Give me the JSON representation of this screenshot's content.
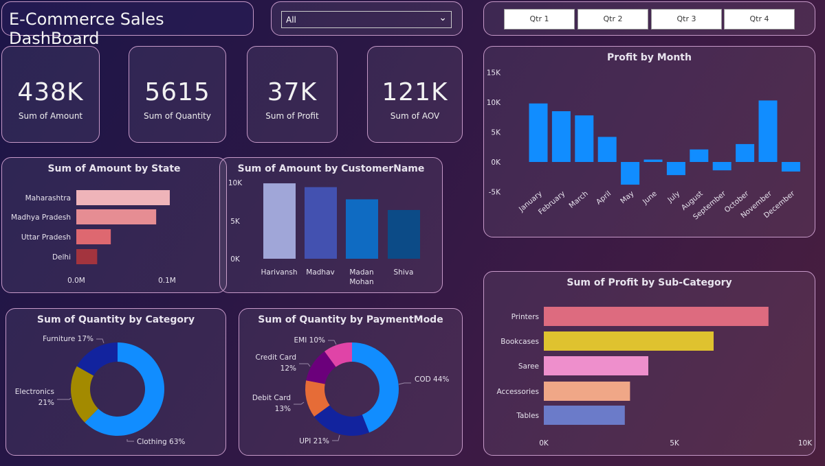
{
  "header": {
    "title": "E-Commerce Sales DashBoard"
  },
  "slicer": {
    "value": "All"
  },
  "quarters": [
    "Qtr 1",
    "Qtr 2",
    "Qtr 3",
    "Qtr 4"
  ],
  "kpis": [
    {
      "value": "438K",
      "label": "Sum of Amount"
    },
    {
      "value": "5615",
      "label": "Sum of Quantity"
    },
    {
      "value": "37K",
      "label": "Sum of Profit"
    },
    {
      "value": "121K",
      "label": "Sum of AOV"
    }
  ],
  "chart_data": [
    {
      "id": "state",
      "type": "bar",
      "orientation": "horizontal",
      "title": "Sum of Amount by State",
      "categories": [
        "Maharashtra",
        "Madhya Pradesh",
        "Uttar Pradesh",
        "Delhi"
      ],
      "values": [
        0.103,
        0.088,
        0.038,
        0.023
      ],
      "unit": "M",
      "xticks": [
        "0.0M",
        "0.1M"
      ],
      "xlim": [
        0,
        0.1
      ],
      "colors": [
        "#efb4b9",
        "#e68d93",
        "#de6870",
        "#a3343e"
      ]
    },
    {
      "id": "customer",
      "type": "bar",
      "title": "Sum of Amount by CustomerName",
      "categories": [
        "Harivansh",
        "Madhav",
        "Madan Mohan",
        "Shiva"
      ],
      "values": [
        9.9,
        9.4,
        7.8,
        6.4
      ],
      "unit": "K",
      "yticks": [
        "10K",
        "5K",
        "0K"
      ],
      "ylim": [
        0,
        10
      ],
      "colors": [
        "#a0a6d8",
        "#4351b0",
        "#0f6bc2",
        "#0c4b87"
      ]
    },
    {
      "id": "month",
      "type": "bar",
      "title": "Profit by Month",
      "categories": [
        "January",
        "February",
        "March",
        "April",
        "May",
        "June",
        "July",
        "August",
        "September",
        "October",
        "November",
        "December"
      ],
      "values": [
        9.8,
        8.5,
        7.8,
        4.2,
        -3.8,
        0.4,
        -2.2,
        2.1,
        -1.4,
        3.0,
        10.3,
        -1.6
      ],
      "unit": "K",
      "yticks": [
        "15K",
        "10K",
        "5K",
        "0K",
        "-5K"
      ],
      "ylim": [
        -5,
        15
      ],
      "color": "#118dff"
    },
    {
      "id": "category",
      "type": "pie",
      "donut": true,
      "title": "Sum of Quantity by Category",
      "slices": [
        {
          "label": "Clothing",
          "pct": "63%",
          "value": 63,
          "color": "#118dff"
        },
        {
          "label": "Electronics",
          "pct": "21%",
          "value": 21,
          "color": "#a38a00"
        },
        {
          "label": "Furniture",
          "pct": "17%",
          "value": 17,
          "color": "#12239e"
        }
      ]
    },
    {
      "id": "payment",
      "type": "pie",
      "donut": true,
      "title": "Sum of Quantity by PaymentMode",
      "slices": [
        {
          "label": "COD",
          "pct": "44%",
          "value": 44,
          "color": "#118dff"
        },
        {
          "label": "UPI",
          "pct": "21%",
          "value": 21,
          "color": "#12239e"
        },
        {
          "label": "Debit Card",
          "pct": "13%",
          "value": 13,
          "color": "#e66c37"
        },
        {
          "label": "Credit Card",
          "pct": "12%",
          "value": 12,
          "color": "#6b007b"
        },
        {
          "label": "EMI",
          "pct": "10%",
          "value": 10,
          "color": "#e044a7"
        }
      ]
    },
    {
      "id": "subcat",
      "type": "bar",
      "orientation": "horizontal",
      "title": "Sum of Profit by Sub-Category",
      "categories": [
        "Printers",
        "Bookcases",
        "Saree",
        "Accessories",
        "Tables"
      ],
      "values": [
        8.6,
        6.5,
        4.0,
        3.3,
        3.1
      ],
      "unit": "K",
      "xticks": [
        "0K",
        "5K",
        "10K"
      ],
      "xlim": [
        0,
        10
      ],
      "colors": [
        "#dd6b7f",
        "#dfc22f",
        "#ee8fcc",
        "#f0a787",
        "#6b7bc9"
      ]
    }
  ]
}
